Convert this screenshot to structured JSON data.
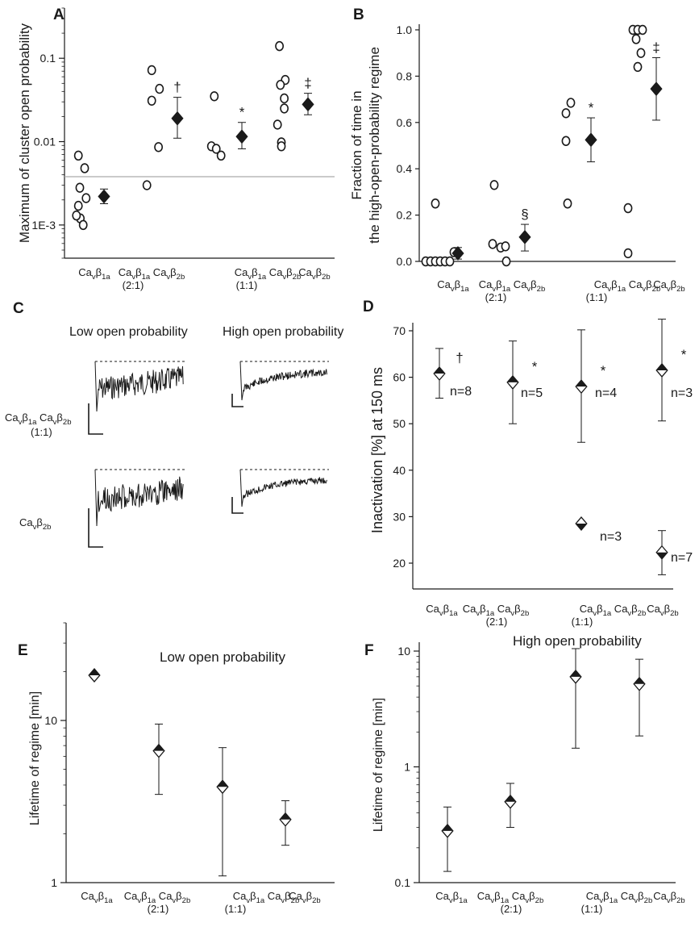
{
  "categories": [
    {
      "base": "Ca",
      "sub1": "v",
      "mid": "β",
      "sub2": "1a",
      "note": ""
    },
    {
      "base": "Ca",
      "sub1": "v",
      "mid": "β",
      "sub2": "1a",
      "base2": "Ca",
      "sub3": "v",
      "mid2": "β",
      "sub4": "2b",
      "note": "(2:1)"
    },
    {
      "base": "Ca",
      "sub1": "v",
      "mid": "β",
      "sub2": "1a",
      "base2": "Ca",
      "sub3": "v",
      "mid2": "β",
      "sub4": "2b",
      "note": "(1:1)"
    },
    {
      "base": "Ca",
      "sub1": "v",
      "mid": "β",
      "sub2": "2b",
      "note": ""
    }
  ],
  "panels": {
    "A": {
      "letter": "A",
      "ylabel": "Maximum of cluster open probability",
      "ticks": [
        "0.1",
        "0.01",
        "1E-3"
      ]
    },
    "B": {
      "letter": "B",
      "ylabel_line1": "Fraction of  time in",
      "ylabel_line2": "the high-open-probability regime",
      "ticks": [
        "0.0",
        "0.2",
        "0.4",
        "0.6",
        "0.8",
        "1.0"
      ]
    },
    "C": {
      "letter": "C",
      "col1": "Low open probability",
      "col2": "High open probability",
      "row1_label": {
        "a": "Ca",
        "as": "v",
        "b": "β",
        "bs": "1a",
        "c": "Ca",
        "cs": "v",
        "d": "β",
        "ds": "2b",
        "note": "(1:1)"
      },
      "row2_label": {
        "a": "Ca",
        "as": "v",
        "b": "β",
        "bs": "2b"
      }
    },
    "D": {
      "letter": "D",
      "ylabel": "Inactivation [%] at 150 ms",
      "ticks": [
        "20",
        "30",
        "40",
        "50",
        "60",
        "70"
      ],
      "n_labels": [
        "n=8",
        "n=5",
        "n=4",
        "n=3",
        "n=3",
        "n=7"
      ]
    },
    "E": {
      "letter": "E",
      "title": "Low open probability",
      "ylabel": "Lifetime of regime [min]",
      "ticks": [
        "1",
        "10"
      ]
    },
    "F": {
      "letter": "F",
      "title": "High open probability",
      "ylabel": "Lifetime of regime [min]",
      "ticks": [
        "0.1",
        "1",
        "10"
      ]
    }
  },
  "chart_data": [
    {
      "panel": "A",
      "type": "scatter",
      "yscale": "log",
      "ylim": [
        0.0004,
        0.4
      ],
      "threshold_line": 0.0038,
      "series": [
        {
          "group": 0,
          "points": [
            0.0068,
            0.0048,
            0.0028,
            0.0021,
            0.0017,
            0.0012,
            0.0013,
            0.001
          ]
        },
        {
          "group": 1,
          "points": [
            0.072,
            0.043,
            0.031,
            0.0086,
            0.003
          ]
        },
        {
          "group": 2,
          "points": [
            0.035,
            0.0088,
            0.0082,
            0.0068
          ]
        },
        {
          "group": 3,
          "points": [
            0.14,
            0.055,
            0.048,
            0.033,
            0.025,
            0.016,
            0.0098,
            0.0088
          ]
        }
      ],
      "means": [
        {
          "group": 0,
          "value": 0.0022,
          "lo": 0.0018,
          "hi": 0.0027
        },
        {
          "group": 1,
          "value": 0.019,
          "lo": 0.011,
          "hi": 0.034,
          "mark": "†"
        },
        {
          "group": 2,
          "value": 0.0115,
          "lo": 0.0082,
          "hi": 0.017,
          "mark": "*"
        },
        {
          "group": 3,
          "value": 0.028,
          "lo": 0.021,
          "hi": 0.038,
          "mark": "‡"
        }
      ]
    },
    {
      "panel": "B",
      "type": "scatter",
      "ylim": [
        0,
        1.0
      ],
      "series": [
        {
          "group": 0,
          "points": [
            0.0,
            0.0,
            0.0,
            0.0,
            0.0,
            0.0,
            0.25,
            0.04
          ]
        },
        {
          "group": 1,
          "points": [
            0.33,
            0.075,
            0.06,
            0.065,
            0.0
          ]
        },
        {
          "group": 2,
          "points": [
            0.64,
            0.685,
            0.52,
            0.25
          ]
        },
        {
          "group": 3,
          "points": [
            1.0,
            1.0,
            1.0,
            0.96,
            0.9,
            0.84,
            0.23,
            0.035
          ]
        }
      ],
      "means": [
        {
          "group": 0,
          "value": 0.035,
          "lo": 0.01,
          "hi": 0.06
        },
        {
          "group": 1,
          "value": 0.105,
          "lo": 0.045,
          "hi": 0.16,
          "mark": "§"
        },
        {
          "group": 2,
          "value": 0.525,
          "lo": 0.43,
          "hi": 0.62,
          "mark": "*"
        },
        {
          "group": 3,
          "value": 0.745,
          "lo": 0.61,
          "hi": 0.88,
          "mark": "‡"
        }
      ]
    },
    {
      "panel": "D",
      "type": "scatter",
      "ylim": [
        17,
        73
      ],
      "points": [
        {
          "group": 0,
          "value": 60.8,
          "lo": 55.5,
          "hi": 66.2,
          "style": "top",
          "mark": "†",
          "n": 0
        },
        {
          "group": 1,
          "value": 58.9,
          "lo": 50,
          "hi": 67.8,
          "style": "top",
          "mark": "*",
          "n": 1
        },
        {
          "group": 2,
          "value": 58.0,
          "lo": 46,
          "hi": 70.2,
          "style": "top",
          "mark": "*",
          "n": 2
        },
        {
          "group": 3,
          "value": 61.5,
          "lo": 50.6,
          "hi": 72.5,
          "style": "top",
          "mark": "*",
          "n": 3
        },
        {
          "group": 2,
          "value": 28.5,
          "lo": 28.5,
          "hi": 28.5,
          "style": "bottom",
          "n": 4
        },
        {
          "group": 3,
          "value": 22.3,
          "lo": 17.5,
          "hi": 27,
          "style": "bottom",
          "n": 5
        }
      ]
    },
    {
      "panel": "E",
      "type": "scatter",
      "yscale": "log",
      "ylim": [
        1,
        40
      ],
      "points": [
        {
          "group": 0,
          "value": 19,
          "lo": 19,
          "hi": 19
        },
        {
          "group": 1,
          "value": 6.5,
          "lo": 3.5,
          "hi": 9.5
        },
        {
          "group": 2,
          "value": 3.9,
          "lo": 1.1,
          "hi": 6.8
        },
        {
          "group": 3,
          "value": 2.45,
          "lo": 1.7,
          "hi": 3.2
        }
      ]
    },
    {
      "panel": "F",
      "type": "scatter",
      "yscale": "log",
      "ylim": [
        0.1,
        11
      ],
      "points": [
        {
          "group": 0,
          "value": 0.28,
          "lo": 0.125,
          "hi": 0.45
        },
        {
          "group": 1,
          "value": 0.5,
          "lo": 0.3,
          "hi": 0.72
        },
        {
          "group": 2,
          "value": 6.0,
          "lo": 1.45,
          "hi": 10.5
        },
        {
          "group": 3,
          "value": 5.2,
          "lo": 1.85,
          "hi": 8.5
        }
      ]
    }
  ]
}
